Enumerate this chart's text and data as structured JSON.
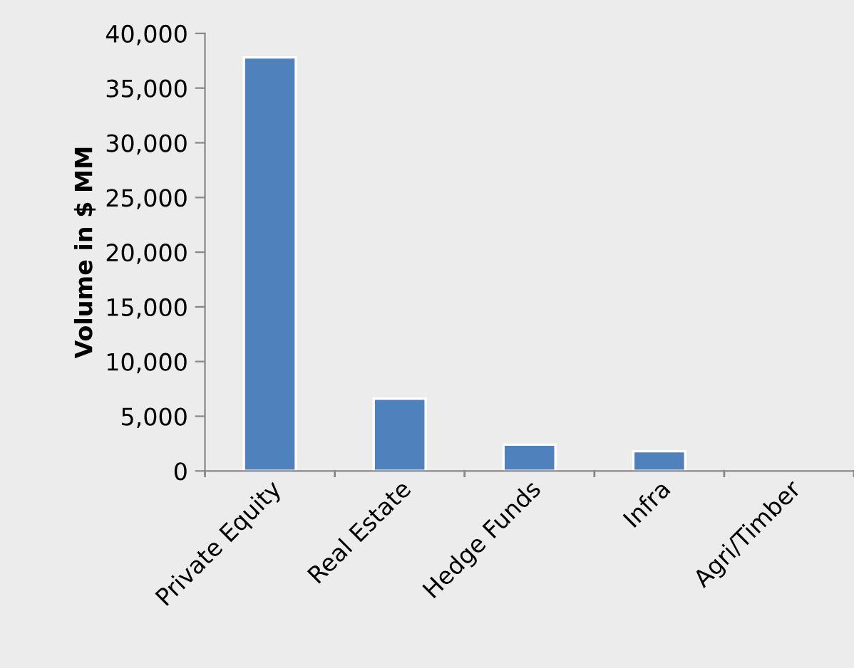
{
  "chart_data": {
    "type": "bar",
    "ylabel": "Volume in $ MM",
    "categories": [
      "Private Equity",
      "Real Estate",
      "Hedge Funds",
      "Infra",
      "Agri/Timber"
    ],
    "values": [
      37800,
      6600,
      2400,
      1800,
      0
    ],
    "color": "#4f81bd",
    "ylim": [
      0,
      40000
    ],
    "yticks": [
      {
        "value": 0,
        "label": "0"
      },
      {
        "value": 5000,
        "label": "5,000"
      },
      {
        "value": 10000,
        "label": "10,000"
      },
      {
        "value": 15000,
        "label": "15,000"
      },
      {
        "value": 20000,
        "label": "20,000"
      },
      {
        "value": 25000,
        "label": "25,000"
      },
      {
        "value": 30000,
        "label": "30,000"
      },
      {
        "value": 35000,
        "label": "35,000"
      },
      {
        "value": 40000,
        "label": "40,000"
      }
    ],
    "grid": false
  }
}
